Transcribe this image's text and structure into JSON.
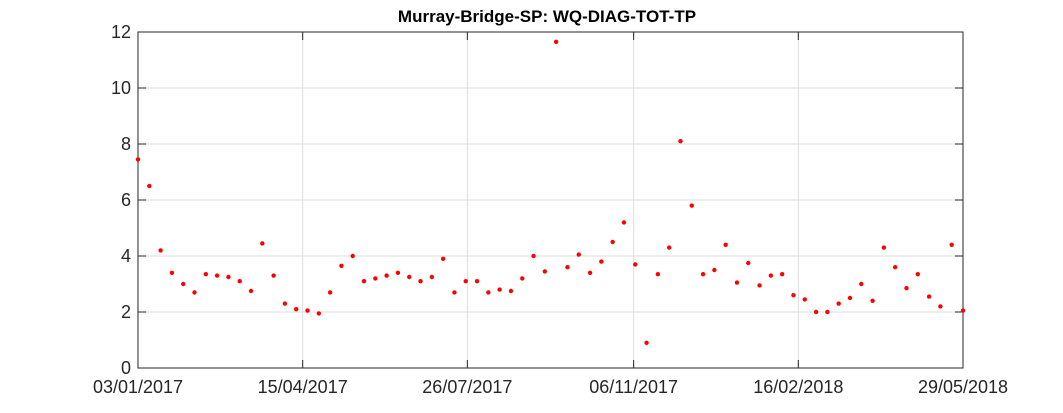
{
  "chart_data": {
    "type": "scatter",
    "title": "Murray-Bridge-SP: WQ-DIAG-TOT-TP",
    "xlabel": "",
    "ylabel": "",
    "xlim": [
      "03/01/2017",
      "29/05/2018"
    ],
    "ylim": [
      0,
      12
    ],
    "x_ticks": [
      "03/01/2017",
      "15/04/2017",
      "26/07/2017",
      "06/11/2017",
      "16/02/2018",
      "29/05/2018"
    ],
    "y_ticks": [
      0,
      2,
      4,
      6,
      8,
      10,
      12
    ],
    "grid": true,
    "marker_color": "#ff0000",
    "series": [
      {
        "x": [
          "03/01/2017",
          "10/01/2017",
          "17/01/2017",
          "24/01/2017",
          "31/01/2017",
          "07/02/2017",
          "14/02/2017",
          "21/02/2017",
          "28/02/2017",
          "07/03/2017",
          "14/03/2017",
          "21/03/2017",
          "28/03/2017",
          "04/04/2017",
          "11/04/2017",
          "18/04/2017",
          "25/04/2017",
          "02/05/2017",
          "09/05/2017",
          "16/05/2017",
          "23/05/2017",
          "30/05/2017",
          "06/06/2017",
          "13/06/2017",
          "20/06/2017",
          "27/06/2017",
          "04/07/2017",
          "11/07/2017",
          "18/07/2017",
          "25/07/2017",
          "01/08/2017",
          "08/08/2017",
          "15/08/2017",
          "22/08/2017",
          "29/08/2017",
          "05/09/2017",
          "12/09/2017",
          "19/09/2017",
          "26/09/2017",
          "03/10/2017",
          "10/10/2017",
          "17/10/2017",
          "24/10/2017",
          "31/10/2017",
          "07/11/2017",
          "14/11/2017",
          "21/11/2017",
          "28/11/2017",
          "05/12/2017",
          "12/12/2017",
          "19/12/2017",
          "26/12/2017",
          "02/01/2018",
          "09/01/2018",
          "16/01/2018",
          "23/01/2018",
          "30/01/2018",
          "06/02/2018",
          "13/02/2018",
          "20/02/2018",
          "27/02/2018",
          "06/03/2018",
          "13/03/2018",
          "20/03/2018",
          "27/03/2018",
          "03/04/2018",
          "10/04/2018",
          "17/04/2018",
          "24/04/2018",
          "01/05/2018",
          "08/05/2018",
          "15/05/2018",
          "22/05/2018",
          "29/05/2018"
        ],
        "y": [
          7.45,
          6.5,
          4.2,
          3.4,
          3.0,
          2.7,
          3.35,
          3.3,
          3.25,
          3.1,
          2.75,
          4.45,
          3.3,
          2.3,
          2.1,
          2.05,
          1.95,
          2.7,
          3.65,
          4.0,
          3.1,
          3.2,
          3.3,
          3.4,
          3.25,
          3.1,
          3.25,
          3.9,
          2.7,
          3.1,
          3.1,
          2.7,
          2.8,
          2.75,
          3.2,
          4.0,
          3.45,
          11.65,
          3.6,
          4.05,
          3.4,
          3.8,
          4.5,
          5.2,
          3.7,
          0.9,
          3.35,
          4.3,
          8.1,
          5.8,
          3.35,
          3.5,
          4.4,
          3.05,
          3.75,
          2.95,
          3.3,
          3.35,
          2.6,
          2.45,
          2.0,
          2.0,
          2.3,
          2.5,
          3.0,
          2.4,
          4.3,
          3.6,
          2.85,
          3.35,
          2.55,
          2.2,
          4.4,
          2.05
        ]
      }
    ]
  }
}
